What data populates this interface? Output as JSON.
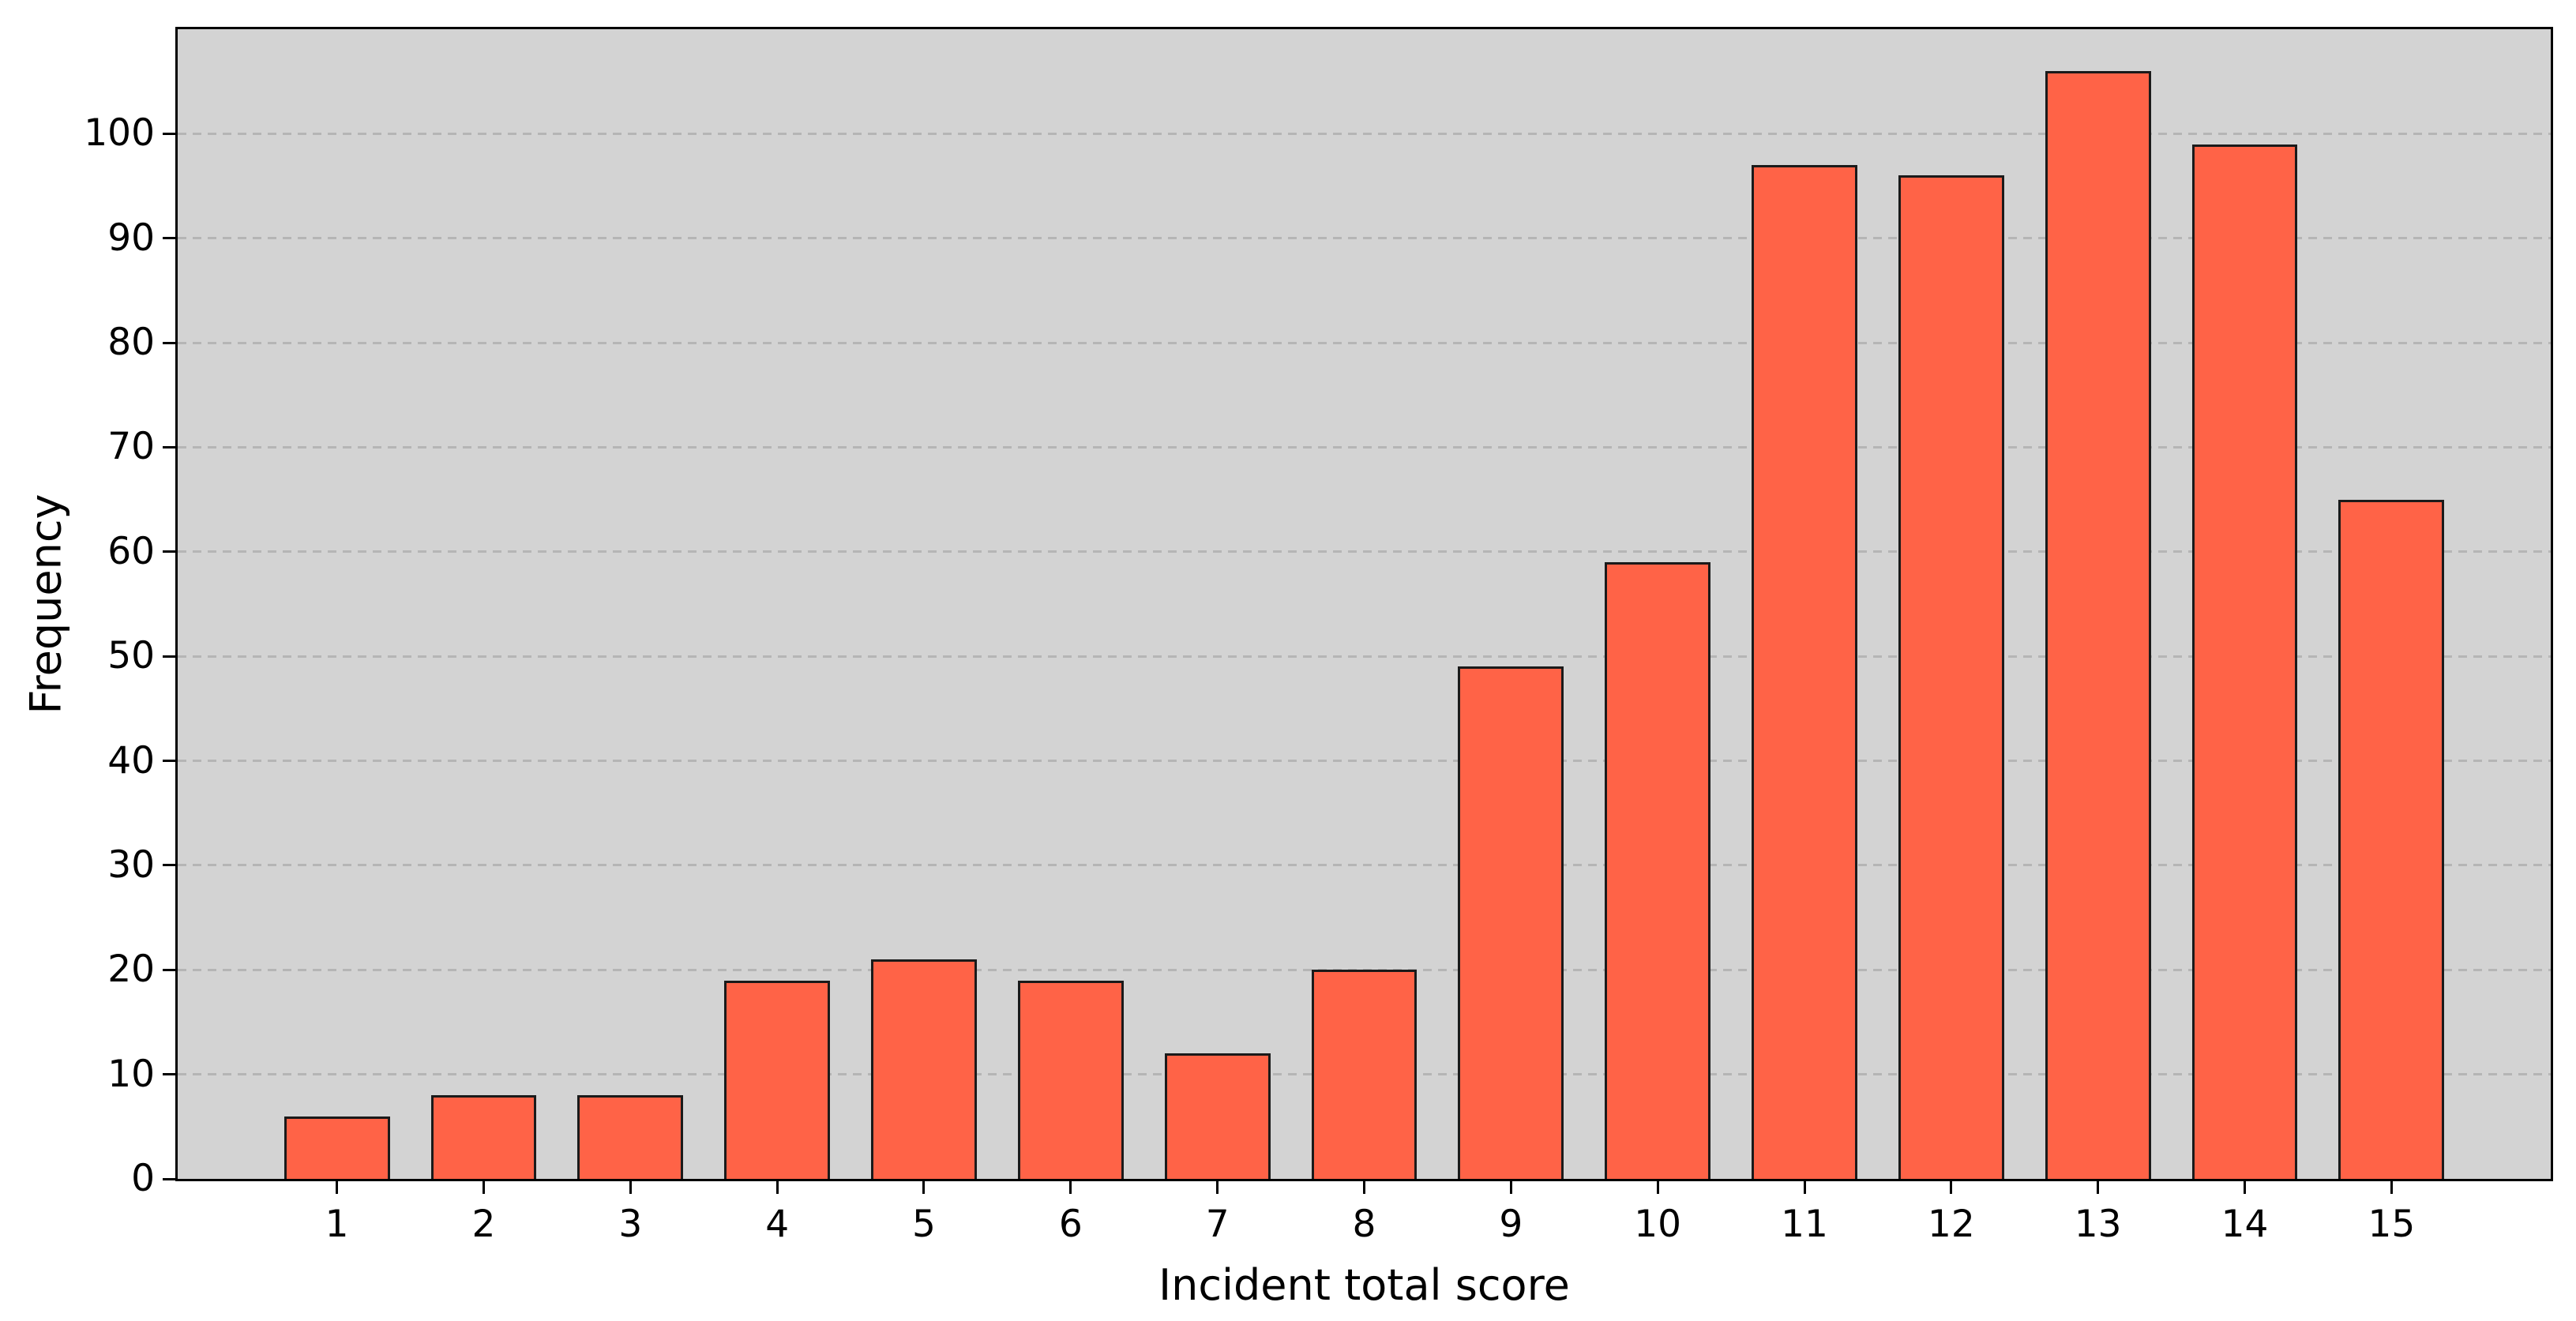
{
  "chart_data": {
    "type": "bar",
    "title": "",
    "xlabel": "Incident total score",
    "ylabel": "Frequency",
    "categories": [
      "1",
      "2",
      "3",
      "4",
      "5",
      "6",
      "7",
      "8",
      "9",
      "10",
      "11",
      "12",
      "13",
      "14",
      "15"
    ],
    "values": [
      6,
      8,
      8,
      19,
      21,
      19,
      12,
      20,
      49,
      59,
      97,
      96,
      106,
      99,
      65
    ],
    "ylim": [
      0,
      110
    ],
    "yticks": [
      0,
      10,
      20,
      30,
      40,
      50,
      60,
      70,
      80,
      90,
      100
    ],
    "grid": {
      "axis": "y",
      "style": "dashed",
      "visible": true
    },
    "legend_position": "none",
    "colors": {
      "bar_fill": "#FF6347",
      "bar_edge": "#1A1A1A",
      "plot_background": "#D3D3D3",
      "gridline": "#B5B5B5",
      "figure_background": "#FFFFFF",
      "text": "#000000"
    }
  }
}
